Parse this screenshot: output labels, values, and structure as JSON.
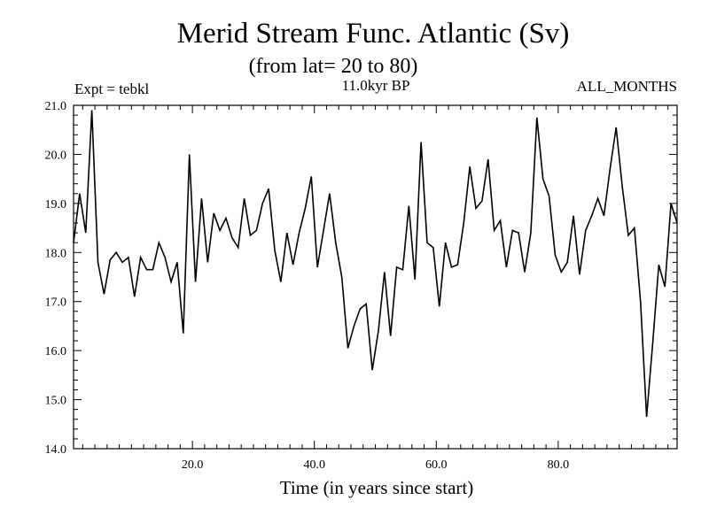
{
  "chart_data": {
    "type": "line",
    "title": "Merid Stream Func. Atlantic (Sv)",
    "subtitle": "(from lat= 20 to 80)",
    "experiment_label": "Expt = tebkl",
    "period_label": "11.0kyr BP",
    "months_label": "ALL_MONTHS",
    "xlabel": "Time (in years since start)",
    "ylabel": "",
    "xlim": [
      0.5,
      99.5
    ],
    "ylim": [
      14.0,
      21.0
    ],
    "x_ticks": [
      20.0,
      40.0,
      60.0,
      80.0
    ],
    "x_tick_labels": [
      "20.0",
      "40.0",
      "60.0",
      "80.0"
    ],
    "y_ticks": [
      14.0,
      15.0,
      16.0,
      17.0,
      18.0,
      19.0,
      20.0,
      21.0
    ],
    "y_tick_labels": [
      "14.0",
      "15.0",
      "16.0",
      "17.0",
      "18.0",
      "19.0",
      "20.0",
      "21.0"
    ],
    "x_minor_step": 2,
    "y_minor_step": 0.2,
    "grid": false,
    "series": [
      {
        "name": "Merid Stream Func. Atlantic",
        "x_start": 0.5,
        "x_step": 1,
        "values": [
          18.2,
          19.2,
          18.4,
          20.9,
          17.8,
          17.15,
          17.85,
          18.0,
          17.8,
          17.9,
          17.1,
          17.9,
          17.65,
          17.65,
          18.2,
          17.9,
          17.4,
          17.8,
          16.35,
          20.0,
          17.4,
          19.1,
          17.8,
          18.8,
          18.45,
          18.7,
          18.3,
          18.1,
          19.1,
          18.35,
          18.45,
          19.0,
          19.3,
          18.05,
          17.4,
          18.4,
          17.75,
          18.4,
          18.9,
          19.55,
          17.7,
          18.45,
          19.2,
          18.2,
          17.5,
          16.05,
          16.5,
          16.85,
          16.95,
          15.6,
          16.4,
          17.6,
          16.3,
          17.7,
          17.65,
          18.95,
          17.45,
          20.25,
          18.2,
          18.1,
          16.9,
          18.2,
          17.7,
          17.75,
          18.6,
          19.75,
          18.9,
          19.05,
          19.9,
          18.45,
          18.65,
          17.7,
          18.45,
          18.4,
          17.6,
          18.4,
          20.75,
          19.5,
          19.15,
          17.95,
          17.6,
          17.8,
          18.75,
          17.55,
          18.45,
          18.75,
          19.1,
          18.75,
          19.7,
          20.55,
          19.35,
          18.35,
          18.5,
          17.0,
          14.65,
          16.15,
          17.75,
          17.3,
          19.0,
          18.6
        ]
      }
    ]
  }
}
